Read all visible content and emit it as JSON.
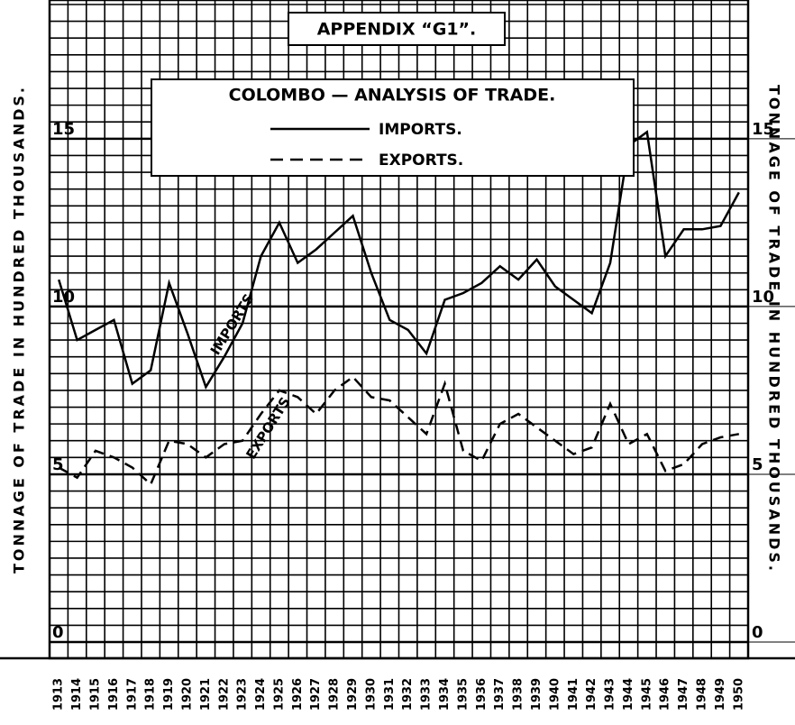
{
  "chart_data": {
    "type": "line",
    "title": "APPENDIX “G1”.",
    "subtitle": "COLOMBO — ANALYSIS OF TRADE.",
    "y_label": "TONNAGE OF TRADE IN HUNDRED THOUSANDS.",
    "y2_label": "TONNAGE OF TRADE IN HUNDRED THOUSANDS.",
    "categories": [
      "1913",
      "1914",
      "1915",
      "1916",
      "1917",
      "1918",
      "1919",
      "1920",
      "1921",
      "1922",
      "1923",
      "1924",
      "1925",
      "1926",
      "1927",
      "1928",
      "1929",
      "1930",
      "1931",
      "1932",
      "1933",
      "1934",
      "1935",
      "1936",
      "1937",
      "1938",
      "1939",
      "1940",
      "1941",
      "1942",
      "1943",
      "1944",
      "1945",
      "1946",
      "1947",
      "1948",
      "1949",
      "1950"
    ],
    "series": [
      {
        "name": "IMPORTS.",
        "color": "#000000",
        "dash": "solid",
        "values": [
          10.8,
          9.0,
          9.3,
          9.6,
          7.7,
          8.1,
          10.7,
          9.2,
          7.6,
          8.5,
          9.5,
          11.5,
          12.5,
          11.3,
          11.7,
          12.2,
          12.7,
          11.0,
          9.6,
          9.3,
          8.6,
          10.2,
          10.4,
          10.7,
          11.2,
          10.8,
          11.4,
          10.6,
          10.2,
          9.8,
          11.3,
          14.8,
          15.2,
          11.5,
          12.3,
          12.3,
          12.4,
          13.4
        ]
      },
      {
        "name": "EXPORTS.",
        "color": "#000000",
        "dash": "dashed",
        "values": [
          5.2,
          4.9,
          5.7,
          5.5,
          5.2,
          4.7,
          6.0,
          5.9,
          5.5,
          5.9,
          6.0,
          6.8,
          7.5,
          7.3,
          6.8,
          7.5,
          7.9,
          7.3,
          7.2,
          6.7,
          6.2,
          7.7,
          5.7,
          5.4,
          6.5,
          6.8,
          6.4,
          6.0,
          5.6,
          5.8,
          7.1,
          5.9,
          6.2,
          5.1,
          5.3,
          5.9,
          6.1,
          6.2
        ]
      }
    ],
    "annotations": [
      {
        "text": "IMPORTS"
      },
      {
        "text": "EXPORTS"
      }
    ],
    "ylim": [
      0,
      19
    ],
    "yticks": [
      0,
      5,
      10,
      15
    ],
    "y2lim": [
      0,
      19
    ],
    "y2ticks": [
      0,
      5,
      10,
      15
    ],
    "grid": true,
    "grid_step": 0.5
  }
}
